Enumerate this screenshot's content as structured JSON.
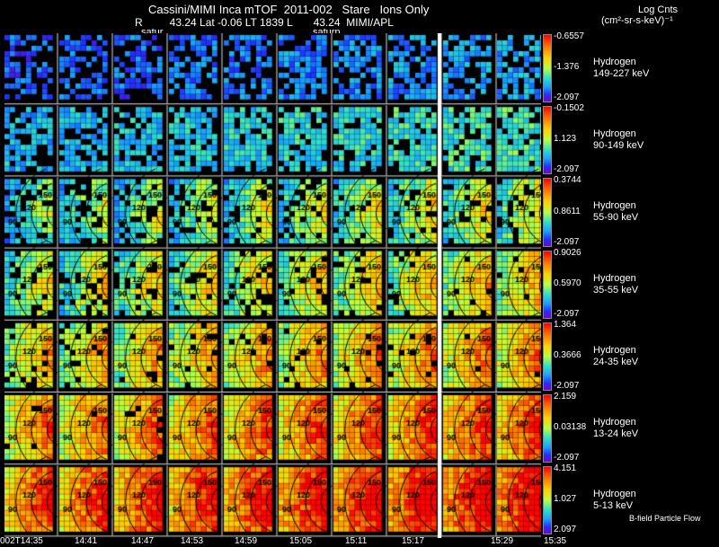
{
  "header": {
    "title": "Cassini/MIMI Inca mTOF  2011-002   Stare   Ions Only",
    "info": "R         43.24 Lat -0.06 LT 1839 L       43.24  MIMI/APL",
    "saturn_label_left": "satur",
    "saturn_label_right": "saturn",
    "units_line1": "Log Cnts",
    "units_line2": "(cm²-sr-s-keV)⁻¹"
  },
  "legend_note": "B-field Particle Flow",
  "chart_data": {
    "type": "heatmap",
    "title": "Cassini/MIMI Inca mTOF 2011-002 Stare Ions Only",
    "time_labels": [
      "002T14:35",
      "14:41",
      "14:47",
      "14:53",
      "14:59",
      "15:05",
      "15:11",
      "15:17",
      "15:29",
      "15:35"
    ],
    "pitch_angle_contours": [
      "90",
      "120",
      "150"
    ],
    "colorscale": [
      "#7a00c8",
      "#2030ff",
      "#17a3ff",
      "#2fe0c8",
      "#b8ff3c",
      "#ffd000",
      "#ff7a00",
      "#ff0000"
    ],
    "channels": [
      {
        "species": "Hydrogen",
        "energy": "149-227 keV",
        "cmax": "-0.6557",
        "cmid": "-1.376",
        "cmin": "-2.097",
        "level": 0.18,
        "ring": false
      },
      {
        "species": "Hydrogen",
        "energy": "90-149 keV",
        "cmax": "-0.1502",
        "cmid": "1.123",
        "cmin": "-2.097",
        "level": 0.32,
        "ring": false
      },
      {
        "species": "Hydrogen",
        "energy": "55-90 keV",
        "cmax": "0.3744",
        "cmid": "0.8611",
        "cmin": "-2.097",
        "level": 0.46,
        "ring": true
      },
      {
        "species": "Hydrogen",
        "energy": "35-55 keV",
        "cmax": "0.9026",
        "cmid": "0.5970",
        "cmin": "-2.097",
        "level": 0.55,
        "ring": true
      },
      {
        "species": "Hydrogen",
        "energy": "24-35 keV",
        "cmax": "1.364",
        "cmid": "0.3666",
        "cmin": "-2.097",
        "level": 0.65,
        "ring": true
      },
      {
        "species": "Hydrogen",
        "energy": "13-24 keV",
        "cmax": "2.159",
        "cmid": "0.03138",
        "cmin": "-2.097",
        "level": 0.76,
        "ring": true
      },
      {
        "species": "Hydrogen",
        "energy": "5-13 keV",
        "cmax": "4.151",
        "cmid": "1.027",
        "cmin": "2.097",
        "level": 0.86,
        "ring": true
      }
    ]
  }
}
